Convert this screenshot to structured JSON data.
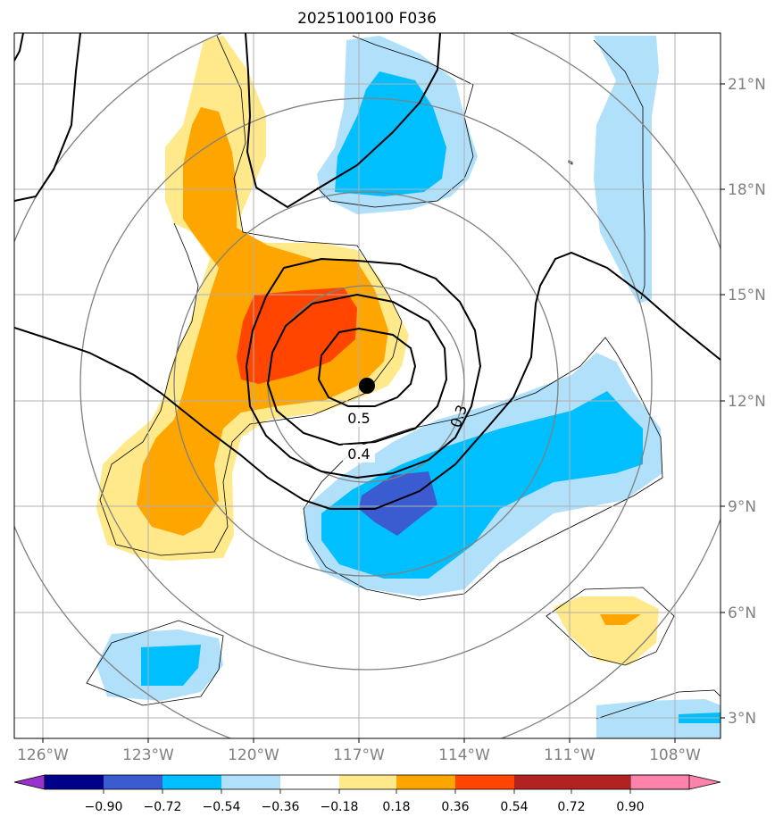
{
  "title": "2025100100 F036",
  "map": {
    "lon_labels": [
      "126°W",
      "123°W",
      "120°W",
      "117°W",
      "114°W",
      "111°W",
      "108°W"
    ],
    "lat_labels": [
      "3°N",
      "6°N",
      "9°N",
      "12°N",
      "15°N",
      "18°N",
      "21°N"
    ],
    "contour_labels": [
      "0.5",
      "0.4",
      "0.3"
    ],
    "marker": "storm-center"
  },
  "colorbar": {
    "ticks": [
      "−0.90",
      "−0.72",
      "−0.54",
      "−0.36",
      "−0.18",
      "0.18",
      "0.36",
      "0.54",
      "0.72",
      "0.90"
    ],
    "colors": [
      "#9932cc",
      "#00008b",
      "#3b5bd0",
      "#00bfff",
      "#b0e0fa",
      "#ffffff",
      "#ffe98a",
      "#ffa500",
      "#ff4500",
      "#b22222",
      "#ff82ab"
    ]
  }
}
